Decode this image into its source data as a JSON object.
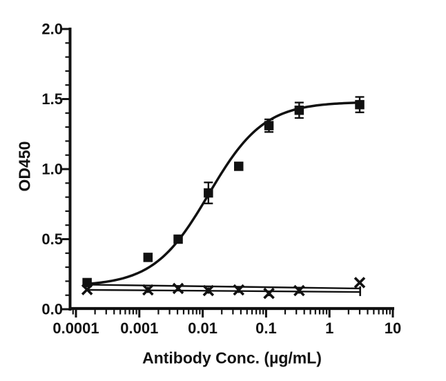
{
  "figure": {
    "background": "#ffffff"
  },
  "chart_data": {
    "type": "scatter",
    "x_scale": "log",
    "grid": false,
    "legend": null,
    "color": "#111111",
    "xlabel": "Antibody Conc. (µg/mL)",
    "ylabel": "OD450",
    "xlim": [
      8.2e-05,
      10
    ],
    "ylim": [
      0,
      2
    ],
    "x_tick_values": [
      0.0001,
      0.001,
      0.01,
      0.1,
      1,
      10
    ],
    "x_tick_labels": [
      "0.0001",
      "0.001",
      "0.01",
      "0.1",
      "1",
      "10"
    ],
    "y_tick_values": [
      0,
      0.5,
      1,
      1.5,
      2
    ],
    "y_tick_labels": [
      "0.0",
      "0.5",
      "1.0",
      "1.5",
      "2.0"
    ],
    "y_minor_step": 0.1,
    "concentrations": [
      0.00015,
      0.00137,
      0.0041,
      0.0123,
      0.037,
      0.111,
      0.333,
      3
    ],
    "series": [
      {
        "name": "filled-square",
        "marker": "square",
        "values": [
          0.19,
          0.37,
          0.5,
          0.83,
          1.02,
          1.31,
          1.42,
          1.46
        ],
        "sd": [
          0,
          0,
          0,
          0.075,
          0,
          0.045,
          0.055,
          0.055
        ],
        "fit": {
          "type": "4PL",
          "bottom": 0.165,
          "top": 1.48,
          "ec50": 0.0125,
          "hill": 1.0,
          "x_from": 0.00015,
          "x_to": 3
        }
      },
      {
        "name": "cross",
        "marker": "x",
        "values": [
          0.14,
          0.138,
          0.148,
          0.133,
          0.138,
          0.113,
          0.133,
          0.19
        ],
        "sd": [
          0,
          0.022,
          0,
          0.022,
          0.022,
          0.02,
          0.022,
          0
        ],
        "fit": {
          "type": "flat-lines",
          "lines": [
            {
              "x1": 0.00015,
              "od1": 0.175,
              "x2": 3,
              "od2": 0.148
            },
            {
              "x1": 0.00015,
              "od1": 0.138,
              "x2": 3,
              "od2": 0.123
            }
          ],
          "end_cap": {
            "x": 3.05,
            "od_top": 0.163,
            "od_bottom": 0.094
          }
        }
      }
    ]
  }
}
